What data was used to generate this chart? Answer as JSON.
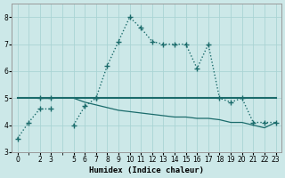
{
  "xlabel": "Humidex (Indice chaleur)",
  "bg_color": "#cce8e8",
  "grid_color": "#aad4d4",
  "line_color": "#1a6b6b",
  "x_values": [
    0,
    1,
    2,
    3,
    4,
    5,
    6,
    7,
    8,
    9,
    10,
    11,
    12,
    13,
    14,
    15,
    16,
    17,
    18,
    19,
    20,
    21,
    22,
    23
  ],
  "series_dotted": [
    3.5,
    4.1,
    4.6,
    4.6,
    null,
    4.0,
    4.7,
    5.0,
    6.2,
    7.1,
    8.0,
    7.6,
    7.1,
    7.0,
    7.0,
    7.0,
    6.1,
    7.0,
    5.0,
    4.85,
    5.0,
    4.1,
    4.1,
    4.1
  ],
  "series_solid_markers": [
    null,
    null,
    5.0,
    5.0,
    null,
    null,
    null,
    5.0,
    null,
    null,
    null,
    null,
    null,
    null,
    null,
    null,
    null,
    null,
    null,
    null,
    null,
    null,
    null,
    null
  ],
  "series_decline": [
    null,
    null,
    null,
    null,
    null,
    5.0,
    4.85,
    4.75,
    4.65,
    4.55,
    4.5,
    4.45,
    4.4,
    4.35,
    4.3,
    4.3,
    4.25,
    4.25,
    4.2,
    4.1,
    4.1,
    4.0,
    3.9,
    4.1
  ],
  "series_flat": [
    5.0,
    5.0,
    5.0,
    5.0,
    5.0,
    5.0,
    5.0,
    5.0,
    5.0,
    5.0,
    5.0,
    5.0,
    5.0,
    5.0,
    5.0,
    5.0,
    5.0,
    5.0,
    5.0,
    5.0,
    5.0,
    5.0,
    5.0,
    5.0
  ],
  "ylim": [
    3.0,
    8.5
  ],
  "xlim": [
    -0.5,
    23.5
  ],
  "yticks": [
    3,
    4,
    5,
    6,
    7,
    8
  ],
  "xticks": [
    0,
    2,
    3,
    5,
    6,
    7,
    8,
    9,
    10,
    11,
    12,
    13,
    14,
    15,
    16,
    17,
    18,
    19,
    20,
    21,
    22,
    23
  ]
}
